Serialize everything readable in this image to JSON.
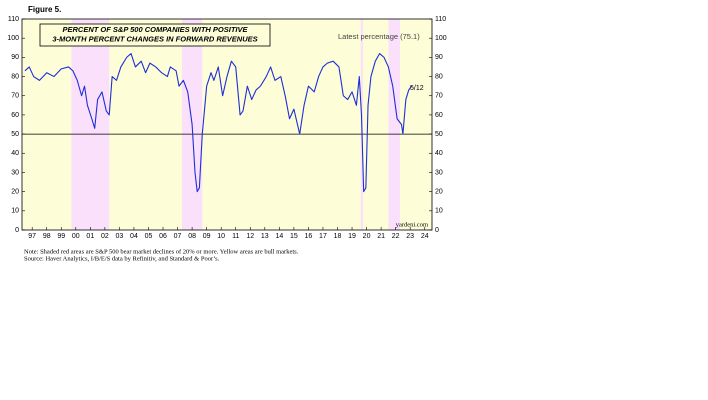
{
  "figure_label": "Figure 5.",
  "chart_data": {
    "type": "line",
    "title_lines": [
      "PERCENT OF S&P 500 COMPANIES WITH POSITIVE",
      "3-MONTH PERCENT CHANGES IN FORWARD REVENUES"
    ],
    "annotations": [
      "Latest percentage (75.1)",
      "5/12",
      "yardeni.com"
    ],
    "notes": [
      "Note: Shaded red areas are S&P 500 bear market declines of 20% or more. Yellow areas are bull markets.",
      "Source: Haver Analytics, I/B/E/S data by Refinitiv, and Standard & Poor’s."
    ],
    "xlim": [
      1996.8,
      2025
    ],
    "ylim": [
      0,
      110
    ],
    "yticks": [
      0,
      10,
      20,
      30,
      40,
      50,
      60,
      70,
      80,
      90,
      100,
      110
    ],
    "xticks": [
      {
        "value": 1997.5,
        "label": "97"
      },
      {
        "value": 1998.5,
        "label": "98"
      },
      {
        "value": 1999.5,
        "label": "99"
      },
      {
        "value": 2000.5,
        "label": "00"
      },
      {
        "value": 2001.5,
        "label": "01"
      },
      {
        "value": 2002.5,
        "label": "02"
      },
      {
        "value": 2003.5,
        "label": "03"
      },
      {
        "value": 2004.5,
        "label": "04"
      },
      {
        "value": 2005.5,
        "label": "05"
      },
      {
        "value": 2006.5,
        "label": "06"
      },
      {
        "value": 2007.5,
        "label": "07"
      },
      {
        "value": 2008.5,
        "label": "08"
      },
      {
        "value": 2009.5,
        "label": "09"
      },
      {
        "value": 2010.5,
        "label": "10"
      },
      {
        "value": 2011.5,
        "label": "11"
      },
      {
        "value": 2012.5,
        "label": "12"
      },
      {
        "value": 2013.5,
        "label": "13"
      },
      {
        "value": 2014.5,
        "label": "14"
      },
      {
        "value": 2015.5,
        "label": "15"
      },
      {
        "value": 2016.5,
        "label": "16"
      },
      {
        "value": 2017.5,
        "label": "17"
      },
      {
        "value": 2018.5,
        "label": "18"
      },
      {
        "value": 2019.5,
        "label": "19"
      },
      {
        "value": 2020.5,
        "label": "20"
      },
      {
        "value": 2021.5,
        "label": "21"
      },
      {
        "value": 2022.5,
        "label": "22"
      },
      {
        "value": 2023.5,
        "label": "23"
      },
      {
        "value": 2024.5,
        "label": "24"
      }
    ],
    "reference_line": 50,
    "bear_markets": [
      [
        2000.2,
        2002.8
      ],
      [
        2007.8,
        2009.2
      ],
      [
        2020.1,
        2020.25
      ],
      [
        2022.0,
        2022.8
      ]
    ],
    "bull_markets": [
      [
        1996.8,
        2000.2
      ],
      [
        2002.8,
        2007.8
      ],
      [
        2009.2,
        2020.1
      ],
      [
        2020.25,
        2022.0
      ],
      [
        2022.8,
        2025
      ]
    ],
    "bear_color": "#fbe0fb",
    "bull_color": "#fdfdd8",
    "series": [
      {
        "color": "#1f2fd6",
        "x": [
          1997.0,
          1997.3,
          1997.6,
          1998.0,
          1998.5,
          1999.0,
          1999.5,
          2000.0,
          2000.3,
          2000.6,
          2000.9,
          2001.1,
          2001.3,
          2001.6,
          2001.8,
          2002.0,
          2002.3,
          2002.6,
          2002.8,
          2003.0,
          2003.3,
          2003.6,
          2004.0,
          2004.3,
          2004.6,
          2005.0,
          2005.3,
          2005.6,
          2006.0,
          2006.4,
          2006.8,
          2007.0,
          2007.4,
          2007.6,
          2007.9,
          2008.2,
          2008.5,
          2008.7,
          2008.85,
          2009.0,
          2009.2,
          2009.5,
          2009.8,
          2010.0,
          2010.3,
          2010.6,
          2010.9,
          2011.2,
          2011.5,
          2011.8,
          2012.0,
          2012.3,
          2012.6,
          2012.9,
          2013.2,
          2013.6,
          2013.9,
          2014.2,
          2014.6,
          2014.9,
          2015.2,
          2015.5,
          2015.9,
          2016.2,
          2016.5,
          2016.9,
          2017.2,
          2017.5,
          2017.8,
          2018.2,
          2018.6,
          2018.9,
          2019.2,
          2019.5,
          2019.8,
          2020.0,
          2020.15,
          2020.3,
          2020.45,
          2020.6,
          2020.8,
          2021.1,
          2021.4,
          2021.7,
          2022.0,
          2022.3,
          2022.6,
          2022.9,
          2023.0,
          2023.2,
          2023.4,
          2023.6
        ],
        "values": [
          83,
          85,
          80,
          78,
          82,
          80,
          84,
          85,
          83,
          78,
          70,
          75,
          65,
          58,
          53,
          68,
          72,
          62,
          60,
          80,
          78,
          85,
          90,
          92,
          85,
          88,
          82,
          87,
          85,
          82,
          80,
          85,
          83,
          75,
          78,
          72,
          55,
          30,
          20,
          22,
          50,
          75,
          82,
          78,
          85,
          70,
          80,
          88,
          85,
          60,
          62,
          75,
          68,
          73,
          75,
          80,
          85,
          78,
          80,
          70,
          58,
          63,
          50,
          65,
          75,
          72,
          80,
          85,
          87,
          88,
          85,
          70,
          68,
          72,
          65,
          80,
          60,
          20,
          22,
          65,
          80,
          88,
          92,
          90,
          85,
          75,
          58,
          55,
          50,
          68,
          73,
          75.1
        ]
      }
    ]
  }
}
